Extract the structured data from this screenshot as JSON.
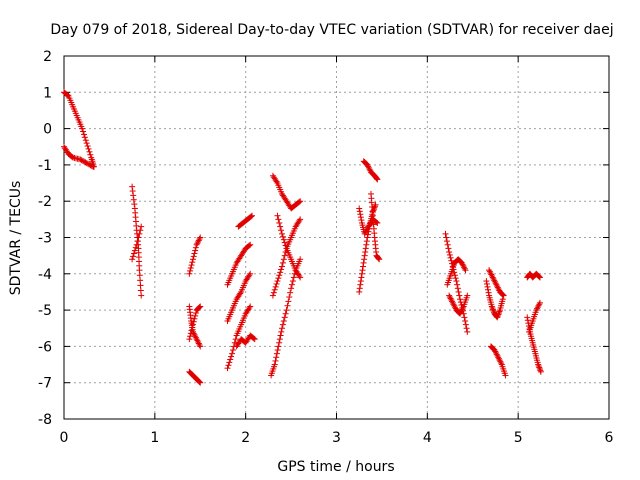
{
  "chart_data": {
    "type": "scatter",
    "title": "Day 079 of 2018, Sidereal Day-to-day VTEC variation (SDTVAR) for receiver daej",
    "xlabel": "GPS time / hours",
    "ylabel": "SDTVAR / TECUs",
    "xlim": [
      0,
      6
    ],
    "ylim": [
      -8,
      2
    ],
    "xticks": [
      "0",
      "1",
      "2",
      "3",
      "4",
      "5",
      "6"
    ],
    "yticks": [
      "2",
      "1",
      "0",
      "-1",
      "-2",
      "-3",
      "-4",
      "-5",
      "-6",
      "-7",
      "-8"
    ],
    "grid": true,
    "marker": "+",
    "marker_color": "#e00000",
    "series": [
      {
        "name": "SDTVAR",
        "segments": [
          [
            [
              0.0,
              1.0
            ],
            [
              0.05,
              0.9
            ],
            [
              0.1,
              0.6
            ],
            [
              0.15,
              0.3
            ],
            [
              0.2,
              0.0
            ],
            [
              0.25,
              -0.4
            ],
            [
              0.3,
              -0.8
            ],
            [
              0.33,
              -1.05
            ]
          ],
          [
            [
              0.0,
              -0.5
            ],
            [
              0.05,
              -0.7
            ],
            [
              0.1,
              -0.8
            ],
            [
              0.18,
              -0.85
            ],
            [
              0.25,
              -0.95
            ],
            [
              0.32,
              -1.05
            ]
          ],
          [
            [
              0.75,
              -1.6
            ],
            [
              0.78,
              -2.2
            ],
            [
              0.8,
              -2.8
            ],
            [
              0.82,
              -3.3
            ],
            [
              0.83,
              -3.9
            ],
            [
              0.85,
              -4.6
            ]
          ],
          [
            [
              0.75,
              -3.6
            ],
            [
              0.8,
              -3.2
            ],
            [
              0.85,
              -2.7
            ]
          ],
          [
            [
              1.38,
              -4.0
            ],
            [
              1.42,
              -3.6
            ],
            [
              1.46,
              -3.2
            ],
            [
              1.5,
              -3.0
            ]
          ],
          [
            [
              1.38,
              -4.9
            ],
            [
              1.4,
              -5.3
            ],
            [
              1.42,
              -5.6
            ],
            [
              1.46,
              -5.8
            ],
            [
              1.5,
              -6.0
            ]
          ],
          [
            [
              1.38,
              -5.8
            ],
            [
              1.42,
              -5.4
            ],
            [
              1.46,
              -5.0
            ],
            [
              1.5,
              -4.9
            ]
          ],
          [
            [
              1.38,
              -6.7
            ],
            [
              1.42,
              -6.8
            ],
            [
              1.46,
              -6.9
            ],
            [
              1.5,
              -7.0
            ]
          ],
          [
            [
              1.8,
              -4.3
            ],
            [
              1.85,
              -4.0
            ],
            [
              1.9,
              -3.7
            ],
            [
              1.95,
              -3.5
            ],
            [
              2.0,
              -3.3
            ],
            [
              2.05,
              -3.2
            ]
          ],
          [
            [
              1.8,
              -5.3
            ],
            [
              1.85,
              -5.0
            ],
            [
              1.9,
              -4.7
            ],
            [
              1.95,
              -4.5
            ],
            [
              2.0,
              -4.2
            ],
            [
              2.05,
              -4.0
            ]
          ],
          [
            [
              1.8,
              -6.6
            ],
            [
              1.85,
              -6.2
            ],
            [
              1.9,
              -5.7
            ],
            [
              1.95,
              -5.4
            ],
            [
              2.0,
              -5.1
            ],
            [
              2.05,
              -4.9
            ]
          ],
          [
            [
              1.9,
              -6.0
            ],
            [
              1.95,
              -5.8
            ],
            [
              2.0,
              -5.9
            ],
            [
              2.05,
              -5.7
            ],
            [
              2.1,
              -5.8
            ]
          ],
          [
            [
              1.92,
              -2.7
            ],
            [
              1.97,
              -2.6
            ],
            [
              2.02,
              -2.5
            ],
            [
              2.07,
              -2.4
            ]
          ],
          [
            [
              2.28,
              -6.8
            ],
            [
              2.32,
              -6.5
            ],
            [
              2.36,
              -6.0
            ],
            [
              2.4,
              -5.5
            ],
            [
              2.45,
              -5.0
            ],
            [
              2.5,
              -4.4
            ],
            [
              2.55,
              -3.9
            ],
            [
              2.6,
              -3.6
            ]
          ],
          [
            [
              2.3,
              -4.6
            ],
            [
              2.35,
              -4.2
            ],
            [
              2.4,
              -3.8
            ],
            [
              2.45,
              -3.3
            ],
            [
              2.5,
              -3.0
            ],
            [
              2.55,
              -2.7
            ],
            [
              2.6,
              -2.5
            ]
          ],
          [
            [
              2.3,
              -1.3
            ],
            [
              2.35,
              -1.5
            ],
            [
              2.4,
              -1.8
            ],
            [
              2.45,
              -2.0
            ],
            [
              2.5,
              -2.2
            ],
            [
              2.55,
              -2.1
            ],
            [
              2.6,
              -2.0
            ]
          ],
          [
            [
              2.35,
              -2.4
            ],
            [
              2.4,
              -2.9
            ],
            [
              2.45,
              -3.3
            ],
            [
              2.5,
              -3.6
            ],
            [
              2.55,
              -3.9
            ],
            [
              2.6,
              -4.1
            ]
          ],
          [
            [
              3.25,
              -4.5
            ],
            [
              3.28,
              -4.0
            ],
            [
              3.31,
              -3.5
            ],
            [
              3.34,
              -3.0
            ],
            [
              3.37,
              -2.6
            ],
            [
              3.4,
              -2.3
            ],
            [
              3.43,
              -2.1
            ]
          ],
          [
            [
              3.25,
              -2.2
            ],
            [
              3.28,
              -2.6
            ],
            [
              3.31,
              -2.9
            ],
            [
              3.35,
              -2.7
            ],
            [
              3.4,
              -2.5
            ],
            [
              3.45,
              -2.6
            ]
          ],
          [
            [
              3.3,
              -0.9
            ],
            [
              3.34,
              -1.0
            ],
            [
              3.38,
              -1.2
            ],
            [
              3.42,
              -1.3
            ],
            [
              3.45,
              -1.4
            ]
          ],
          [
            [
              3.38,
              -1.8
            ],
            [
              3.4,
              -2.4
            ],
            [
              3.42,
              -3.0
            ],
            [
              3.44,
              -3.5
            ],
            [
              3.47,
              -3.6
            ]
          ],
          [
            [
              4.2,
              -2.9
            ],
            [
              4.24,
              -3.4
            ],
            [
              4.28,
              -3.8
            ],
            [
              4.32,
              -4.2
            ],
            [
              4.36,
              -4.7
            ],
            [
              4.4,
              -5.1
            ],
            [
              4.44,
              -5.6
            ]
          ],
          [
            [
              4.22,
              -4.3
            ],
            [
              4.26,
              -4.0
            ],
            [
              4.3,
              -3.7
            ],
            [
              4.34,
              -3.6
            ],
            [
              4.38,
              -3.7
            ],
            [
              4.42,
              -3.9
            ]
          ],
          [
            [
              4.24,
              -4.6
            ],
            [
              4.28,
              -4.8
            ],
            [
              4.32,
              -5.0
            ],
            [
              4.36,
              -5.1
            ],
            [
              4.4,
              -4.9
            ],
            [
              4.44,
              -4.6
            ]
          ],
          [
            [
              4.65,
              -4.2
            ],
            [
              4.68,
              -4.6
            ],
            [
              4.71,
              -4.9
            ],
            [
              4.74,
              -5.1
            ],
            [
              4.77,
              -5.2
            ],
            [
              4.8,
              -5.0
            ],
            [
              4.83,
              -4.7
            ]
          ],
          [
            [
              4.68,
              -3.9
            ],
            [
              4.72,
              -4.1
            ],
            [
              4.76,
              -4.3
            ],
            [
              4.8,
              -4.5
            ],
            [
              4.84,
              -4.6
            ]
          ],
          [
            [
              4.7,
              -6.0
            ],
            [
              4.74,
              -6.1
            ],
            [
              4.78,
              -6.3
            ],
            [
              4.82,
              -6.5
            ],
            [
              4.86,
              -6.8
            ]
          ],
          [
            [
              5.1,
              -5.2
            ],
            [
              5.13,
              -5.6
            ],
            [
              5.16,
              -5.9
            ],
            [
              5.19,
              -6.2
            ],
            [
              5.22,
              -6.5
            ],
            [
              5.25,
              -6.7
            ]
          ],
          [
            [
              5.1,
              -4.1
            ],
            [
              5.13,
              -4.0
            ],
            [
              5.16,
              -4.1
            ],
            [
              5.2,
              -4.0
            ],
            [
              5.24,
              -4.1
            ]
          ],
          [
            [
              5.12,
              -5.6
            ],
            [
              5.16,
              -5.3
            ],
            [
              5.2,
              -5.0
            ],
            [
              5.24,
              -4.8
            ]
          ]
        ]
      }
    ]
  }
}
